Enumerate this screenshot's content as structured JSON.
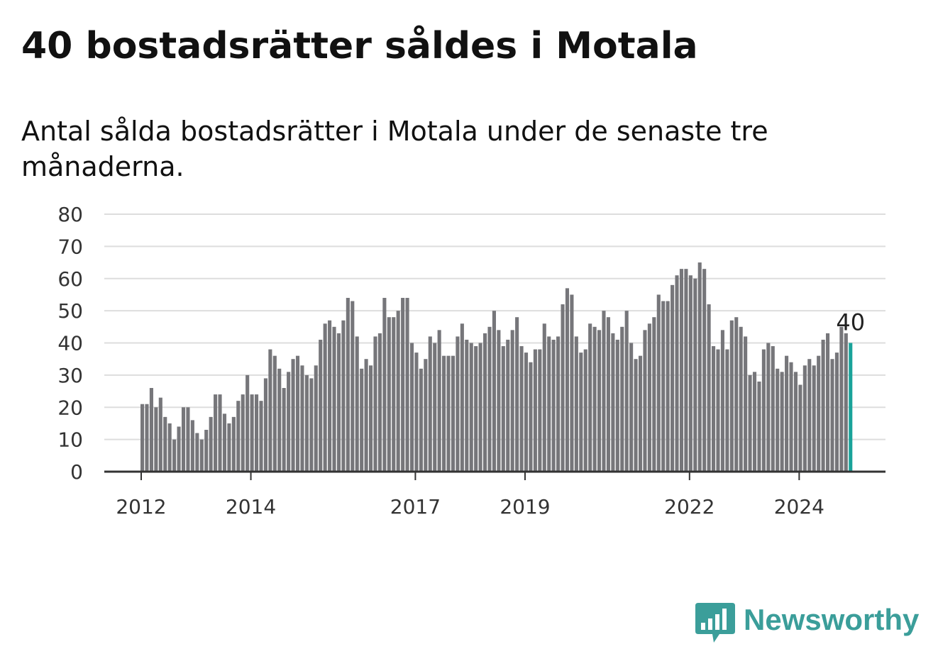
{
  "title": "40 bostadsrätter såldes i Motala",
  "subtitle": "Antal sålda bostadsrätter i Motala under de senaste tre månaderna.",
  "brand": {
    "name": "Newsworthy",
    "color": "#3b9e9a",
    "icon": "bar-chart-speech-bubble-icon"
  },
  "colors": {
    "bar": "#76767a",
    "highlight": "#1aa39a",
    "grid": "#dddddd",
    "axis": "#333333"
  },
  "chart_data": {
    "type": "bar",
    "ylim": [
      0,
      80
    ],
    "yticks": [
      0,
      10,
      20,
      30,
      40,
      50,
      60,
      70,
      80
    ],
    "grid": true,
    "x_start": "2012-01",
    "frequency": "monthly",
    "xticks": [
      {
        "label": "2012",
        "index": 0
      },
      {
        "label": "2014",
        "index": 24
      },
      {
        "label": "2017",
        "index": 60
      },
      {
        "label": "2019",
        "index": 84
      },
      {
        "label": "2022",
        "index": 120
      },
      {
        "label": "2024",
        "index": 144
      }
    ],
    "values": [
      21,
      21,
      26,
      20,
      23,
      17,
      15,
      10,
      14,
      20,
      20,
      16,
      12,
      10,
      13,
      17,
      24,
      24,
      18,
      15,
      17,
      22,
      24,
      30,
      24,
      24,
      22,
      29,
      38,
      36,
      32,
      26,
      31,
      35,
      36,
      33,
      30,
      29,
      33,
      41,
      46,
      47,
      45,
      43,
      47,
      54,
      53,
      42,
      32,
      35,
      33,
      42,
      43,
      54,
      48,
      48,
      50,
      54,
      54,
      40,
      37,
      32,
      35,
      42,
      40,
      44,
      36,
      36,
      36,
      42,
      46,
      41,
      40,
      39,
      40,
      43,
      45,
      50,
      44,
      39,
      41,
      44,
      48,
      39,
      37,
      34,
      38,
      38,
      46,
      42,
      41,
      42,
      52,
      57,
      55,
      42,
      37,
      38,
      46,
      45,
      44,
      50,
      48,
      43,
      41,
      45,
      50,
      40,
      35,
      36,
      44,
      46,
      48,
      55,
      53,
      53,
      58,
      61,
      63,
      63,
      61,
      60,
      65,
      63,
      52,
      39,
      38,
      44,
      38,
      47,
      48,
      45,
      42,
      30,
      31,
      28,
      38,
      40,
      39,
      32,
      31,
      36,
      34,
      31,
      27,
      33,
      35,
      33,
      36,
      41,
      43,
      35,
      37,
      45,
      43,
      40
    ],
    "highlight_last": true,
    "last_value_label": "40"
  }
}
